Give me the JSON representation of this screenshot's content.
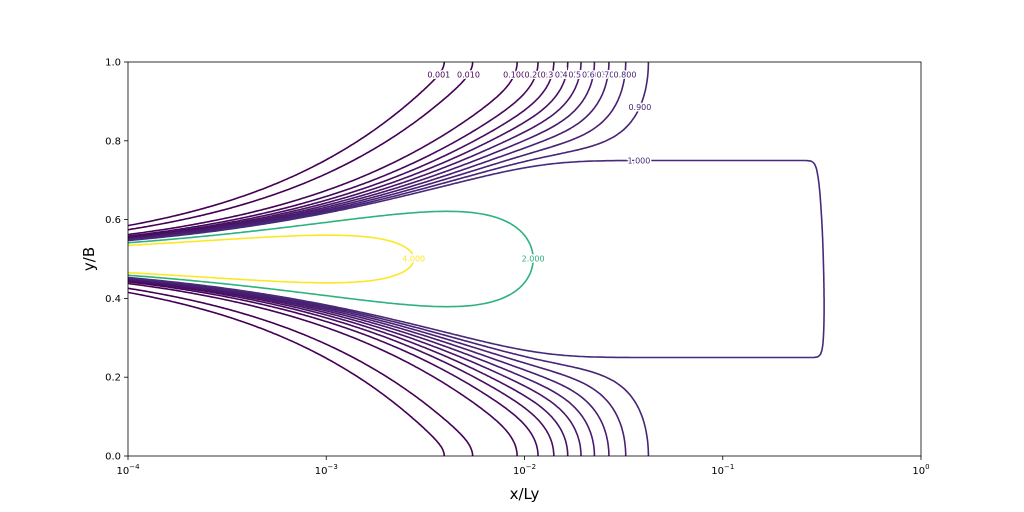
{
  "chart_data": {
    "type": "contour",
    "xlabel": "x/Ly",
    "ylabel": "y/B",
    "xscale": "log",
    "xlim": [
      0.0001,
      1
    ],
    "ylim": [
      0,
      1
    ],
    "x_ticks": [
      {
        "value": 0.0001,
        "base": "10",
        "exp": "−4"
      },
      {
        "value": 0.001,
        "base": "10",
        "exp": "−3"
      },
      {
        "value": 0.01,
        "base": "10",
        "exp": "−2"
      },
      {
        "value": 0.1,
        "base": "10",
        "exp": "−1"
      },
      {
        "value": 1,
        "base": "10",
        "exp": "0"
      }
    ],
    "y_ticks": [
      {
        "value": 0.0,
        "label": "0.0"
      },
      {
        "value": 0.2,
        "label": "0.2"
      },
      {
        "value": 0.4,
        "label": "0.4"
      },
      {
        "value": 0.6,
        "label": "0.6"
      },
      {
        "value": 0.8,
        "label": "0.8"
      },
      {
        "value": 1.0,
        "label": "1.0"
      }
    ],
    "colormap": "viridis",
    "source_center": 0.5,
    "levels": [
      {
        "value": 0.001,
        "label": "0.001",
        "color": "#440154"
      },
      {
        "value": 0.01,
        "label": "0.010",
        "color": "#440154"
      },
      {
        "value": 0.1,
        "label": "0.100",
        "color": "#450457"
      },
      {
        "value": 0.2,
        "label": "0.200",
        "color": "#46085c"
      },
      {
        "value": 0.3,
        "label": "0.300",
        "color": "#470d60"
      },
      {
        "value": 0.4,
        "label": "0.400",
        "color": "#471164"
      },
      {
        "value": 0.5,
        "label": "0.500",
        "color": "#481769"
      },
      {
        "value": 0.6,
        "label": "0.600",
        "color": "#471b6e"
      },
      {
        "value": 0.7,
        "label": "0.700",
        "color": "#481e70"
      },
      {
        "value": 0.8,
        "label": "0.800",
        "color": "#482173"
      },
      {
        "value": 0.9,
        "label": "0.900",
        "color": "#482475"
      },
      {
        "value": 1.0,
        "label": "1.000",
        "color": "#472a7a"
      },
      {
        "value": 2.0,
        "label": "2.000",
        "color": "#2db27d"
      },
      {
        "value": 4.0,
        "label": "4.000",
        "color": "#fde725"
      }
    ]
  }
}
